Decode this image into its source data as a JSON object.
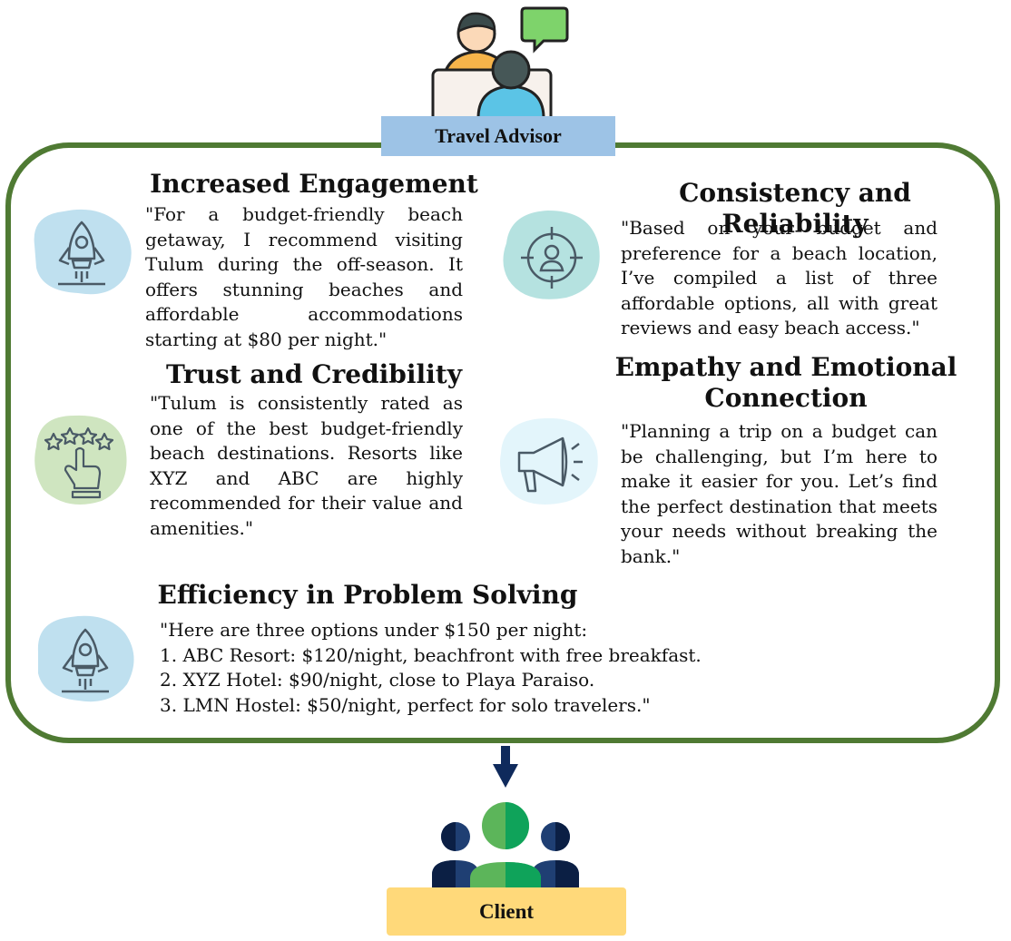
{
  "advisor": {
    "label": "Travel Advisor",
    "icon": "advisor-conversation-icon"
  },
  "client": {
    "label": "Client",
    "icon": "client-group-icon"
  },
  "colors": {
    "frame": "#4f7a33",
    "advisor_label_bg": "#9dc3e6",
    "client_label_bg": "#ffd97a",
    "arrow": "#0f2a5c"
  },
  "sections": {
    "engagement": {
      "title": "Increased Engagement",
      "icon": "rocket-icon",
      "text": "\"For a budget-friendly beach getaway, I recommend visiting Tulum during the off-season. It offers stunning beaches and affordable accommodations starting at $80 per night.\""
    },
    "trust": {
      "title": "Trust and Credibility",
      "icon": "rating-stars-hand-icon",
      "text": "\"Tulum is consistently rated as one of the best budget-friendly beach destinations. Resorts like XYZ and ABC are highly recommended for their value and amenities.\""
    },
    "consistency": {
      "title": "Consistency and Reliability",
      "icon": "target-person-icon",
      "text": "\"Based on your budget and preference for a beach location, I’ve compiled a list of three affordable options, all with great reviews and easy beach access.\""
    },
    "empathy": {
      "title_line1": "Empathy and Emotional",
      "title_line2": "Connection",
      "icon": "megaphone-icon",
      "text": "\"Planning a trip on a budget can be challenging, but I’m here to make it easier for you. Let’s find the perfect destination that meets your needs without breaking the bank.\""
    },
    "efficiency": {
      "title": "Efficiency in Problem Solving",
      "icon": "rocket-icon",
      "lines": [
        "\"Here are three options under $150 per night:",
        "1. ABC Resort: $120/night, beachfront with free breakfast.",
        "2. XYZ Hotel: $90/night, close to Playa Paraiso.",
        "3. LMN Hostel: $50/night, perfect for solo travelers.\""
      ]
    }
  }
}
